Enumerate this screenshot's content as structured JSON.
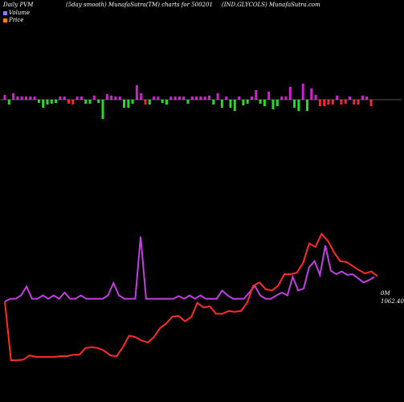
{
  "header": {
    "left": "Daily PVM",
    "center": "(5day smooth) MunafaSutra(TM) charts for 500201",
    "right": "(IND.GLYCOLS) MunafaSutra.com"
  },
  "legend": [
    {
      "label": "Volume",
      "color": "#7f7fff"
    },
    {
      "label": "Price",
      "color": "#ff7f00"
    }
  ],
  "right_labels": {
    "volume": "0M",
    "price": "1062.40"
  },
  "colors": {
    "background": "#000000",
    "price_line": "#ff2b2b",
    "pvm_line": "#c040e0",
    "bar_up": "#d020d0",
    "bar_down_green": "#22dd22",
    "bar_down_red": "#ff2233",
    "baseline": "#aaaaaa"
  },
  "chart_data": {
    "type": "line",
    "series": [
      {
        "name": "Price",
        "values": [
          100,
          14,
          14,
          15,
          21,
          19,
          19,
          19,
          19,
          20,
          20,
          22,
          22,
          32,
          33,
          32,
          28,
          21,
          20,
          33,
          50,
          48,
          43,
          40,
          48,
          61,
          68,
          78,
          79,
          71,
          77,
          98,
          91,
          93,
          82,
          82,
          86,
          85,
          86,
          98,
          123,
          128,
          118,
          116,
          123,
          140,
          140,
          142,
          156,
          185,
          180,
          199,
          189,
          172,
          159,
          158,
          152,
          146,
          141,
          144,
          137
        ]
      },
      {
        "name": "",
        "values": [
          100,
          104,
          104,
          109,
          122,
          104,
          104,
          109,
          104,
          109,
          104,
          113,
          104,
          104,
          109,
          104,
          104,
          104,
          104,
          109,
          127,
          109,
          104,
          104,
          104,
          195,
          104,
          104,
          104,
          104,
          104,
          104,
          108,
          104,
          109,
          104,
          109,
          104,
          104,
          104,
          116,
          109,
          104,
          104,
          104,
          113,
          123,
          109,
          104,
          104,
          109,
          113,
          109,
          136,
          116,
          119,
          150,
          159,
          139,
          182,
          145,
          140,
          144,
          139,
          140,
          134,
          128,
          131,
          136
        ]
      }
    ],
    "volume_bars": [
      {
        "h": 6,
        "c": "up"
      },
      {
        "h": -6,
        "c": "green"
      },
      {
        "h": 8,
        "c": "up"
      },
      {
        "h": 4,
        "c": "up"
      },
      {
        "h": 4,
        "c": "up"
      },
      {
        "h": 4,
        "c": "up"
      },
      {
        "h": 4,
        "c": "up"
      },
      {
        "h": 4,
        "c": "up"
      },
      {
        "h": -4,
        "c": "green"
      },
      {
        "h": -10,
        "c": "green"
      },
      {
        "h": -6,
        "c": "green"
      },
      {
        "h": -5,
        "c": "green"
      },
      {
        "h": -4,
        "c": "green"
      },
      {
        "h": 4,
        "c": "up"
      },
      {
        "h": 4,
        "c": "up"
      },
      {
        "h": -5,
        "c": "red"
      },
      {
        "h": -6,
        "c": "red"
      },
      {
        "h": 4,
        "c": "up"
      },
      {
        "h": 4,
        "c": "up"
      },
      {
        "h": -5,
        "c": "green"
      },
      {
        "h": -5,
        "c": "green"
      },
      {
        "h": 5,
        "c": "up"
      },
      {
        "h": -4,
        "c": "green"
      },
      {
        "h": -24,
        "c": "green"
      },
      {
        "h": 7,
        "c": "up"
      },
      {
        "h": 5,
        "c": "up"
      },
      {
        "h": 4,
        "c": "up"
      },
      {
        "h": 4,
        "c": "up"
      },
      {
        "h": -10,
        "c": "green"
      },
      {
        "h": -10,
        "c": "green"
      },
      {
        "h": -5,
        "c": "green"
      },
      {
        "h": 18,
        "c": "up"
      },
      {
        "h": 8,
        "c": "up"
      },
      {
        "h": -6,
        "c": "red"
      },
      {
        "h": -6,
        "c": "green"
      },
      {
        "h": 4,
        "c": "up"
      },
      {
        "h": 4,
        "c": "up"
      },
      {
        "h": -4,
        "c": "green"
      },
      {
        "h": -6,
        "c": "green"
      },
      {
        "h": 4,
        "c": "up"
      },
      {
        "h": 4,
        "c": "up"
      },
      {
        "h": 4,
        "c": "up"
      },
      {
        "h": 4,
        "c": "up"
      },
      {
        "h": -5,
        "c": "green"
      },
      {
        "h": 4,
        "c": "up"
      },
      {
        "h": 4,
        "c": "up"
      },
      {
        "h": 4,
        "c": "up"
      },
      {
        "h": 4,
        "c": "up"
      },
      {
        "h": 5,
        "c": "up"
      },
      {
        "h": -6,
        "c": "green"
      },
      {
        "h": 8,
        "c": "up"
      },
      {
        "h": -10,
        "c": "green"
      },
      {
        "h": 4,
        "c": "up"
      },
      {
        "h": -10,
        "c": "green"
      },
      {
        "h": -14,
        "c": "green"
      },
      {
        "h": 4,
        "c": "up"
      },
      {
        "h": -7,
        "c": "green"
      },
      {
        "h": -5,
        "c": "green"
      },
      {
        "h": 4,
        "c": "up"
      },
      {
        "h": 12,
        "c": "up"
      },
      {
        "h": -5,
        "c": "green"
      },
      {
        "h": -8,
        "c": "green"
      },
      {
        "h": 10,
        "c": "up"
      },
      {
        "h": -12,
        "c": "green"
      },
      {
        "h": -8,
        "c": "green"
      },
      {
        "h": 4,
        "c": "up"
      },
      {
        "h": 4,
        "c": "up"
      },
      {
        "h": 16,
        "c": "up"
      },
      {
        "h": -10,
        "c": "green"
      },
      {
        "h": -14,
        "c": "green"
      },
      {
        "h": 20,
        "c": "up"
      },
      {
        "h": -14,
        "c": "green"
      },
      {
        "h": 14,
        "c": "up"
      },
      {
        "h": 6,
        "c": "up"
      },
      {
        "h": -8,
        "c": "red"
      },
      {
        "h": -8,
        "c": "red"
      },
      {
        "h": -6,
        "c": "red"
      },
      {
        "h": -6,
        "c": "red"
      },
      {
        "h": 5,
        "c": "up"
      },
      {
        "h": -6,
        "c": "red"
      },
      {
        "h": -5,
        "c": "red"
      },
      {
        "h": 4,
        "c": "up"
      },
      {
        "h": -6,
        "c": "red"
      },
      {
        "h": -6,
        "c": "red"
      },
      {
        "h": 5,
        "c": "up"
      },
      {
        "h": 4,
        "c": "up"
      },
      {
        "h": -8,
        "c": "red"
      }
    ]
  }
}
